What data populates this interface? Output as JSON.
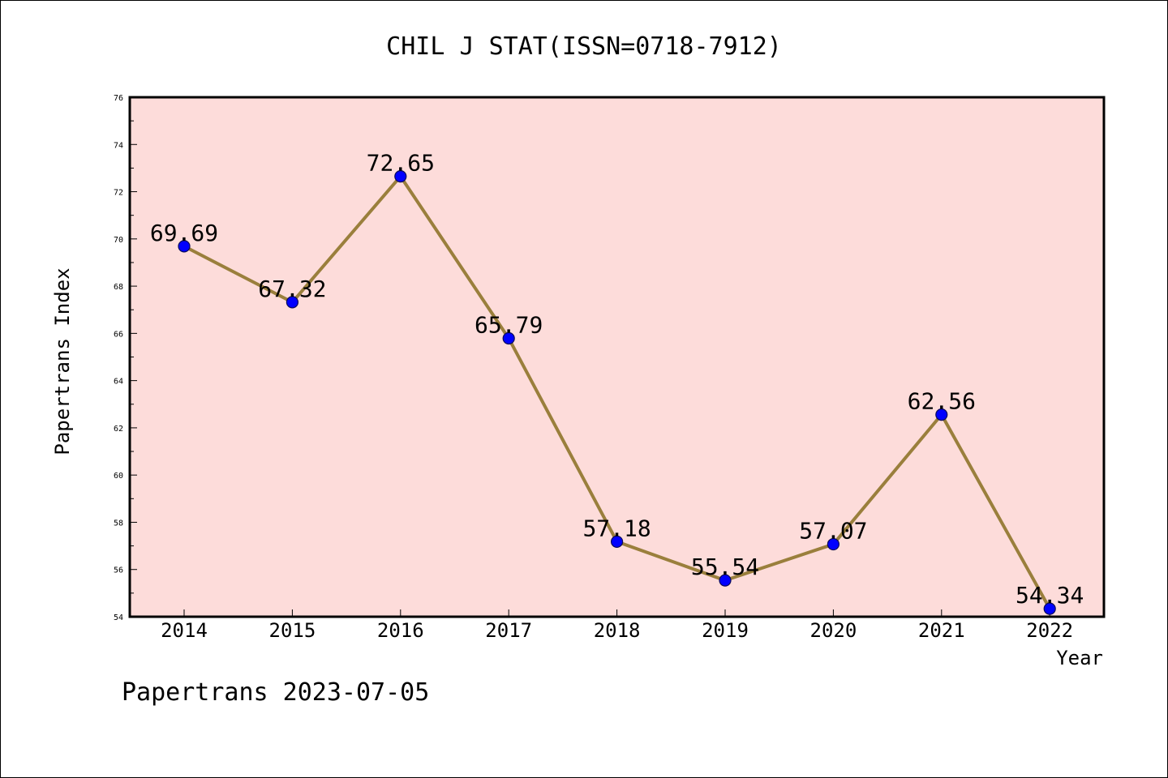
{
  "chart_data": {
    "type": "line",
    "title": "CHIL J STAT(ISSN=0718-7912)",
    "xlabel": "Year",
    "ylabel": "Papertrans Index",
    "categories": [
      "2014",
      "2015",
      "2016",
      "2017",
      "2018",
      "2019",
      "2020",
      "2021",
      "2022"
    ],
    "series": [
      {
        "values": [
          69.69,
          67.32,
          72.65,
          65.79,
          57.18,
          55.54,
          57.07,
          62.56,
          54.34
        ]
      }
    ],
    "data_labels": [
      "69.69",
      "67.32",
      "72.65",
      "65.79",
      "57.18",
      "55.54",
      "57.07",
      "62.56",
      "54.34"
    ],
    "ylim": [
      54,
      76
    ],
    "yticks": [
      "54",
      "56",
      "58",
      "60",
      "62",
      "64",
      "66",
      "68",
      "70",
      "72",
      "74",
      "76"
    ],
    "grid": false,
    "legend": "none",
    "colors": {
      "plot_background": "#fddcda",
      "line": "#9a7f3c",
      "marker": "#0000ff",
      "marker_edge": "#0a0a5a"
    }
  },
  "footer": {
    "text": "Papertrans 2023-07-05"
  }
}
